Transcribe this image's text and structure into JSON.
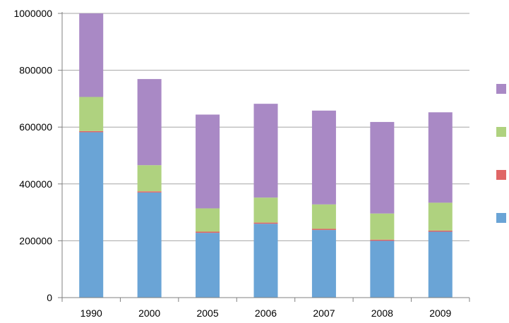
{
  "chart_data": {
    "type": "bar",
    "stacked": true,
    "title": "",
    "xlabel": "",
    "ylabel": "",
    "categories": [
      "1990",
      "2000",
      "2005",
      "2006",
      "2007",
      "2008",
      "2009"
    ],
    "ylim": [
      0,
      1000000
    ],
    "yticks": [
      0,
      200000,
      400000,
      600000,
      800000,
      1000000
    ],
    "ytick_labels": [
      "0",
      "200000",
      "400000",
      "600000",
      "800000",
      "1000000"
    ],
    "grid": true,
    "legend_position": "right",
    "series": [
      {
        "color": "#6aa4d6",
        "values": [
          582000,
          370000,
          228000,
          260000,
          238000,
          200000,
          232000
        ]
      },
      {
        "color": "#e06666",
        "values": [
          4000,
          4000,
          4000,
          4000,
          4000,
          4000,
          4000
        ]
      },
      {
        "color": "#afd27f",
        "values": [
          120000,
          92000,
          82000,
          88000,
          86000,
          92000,
          98000
        ]
      },
      {
        "color": "#a989c5",
        "values": [
          294000,
          303000,
          330000,
          330000,
          330000,
          322000,
          318000
        ]
      }
    ],
    "legend_order": [
      3,
      2,
      1,
      0
    ]
  }
}
